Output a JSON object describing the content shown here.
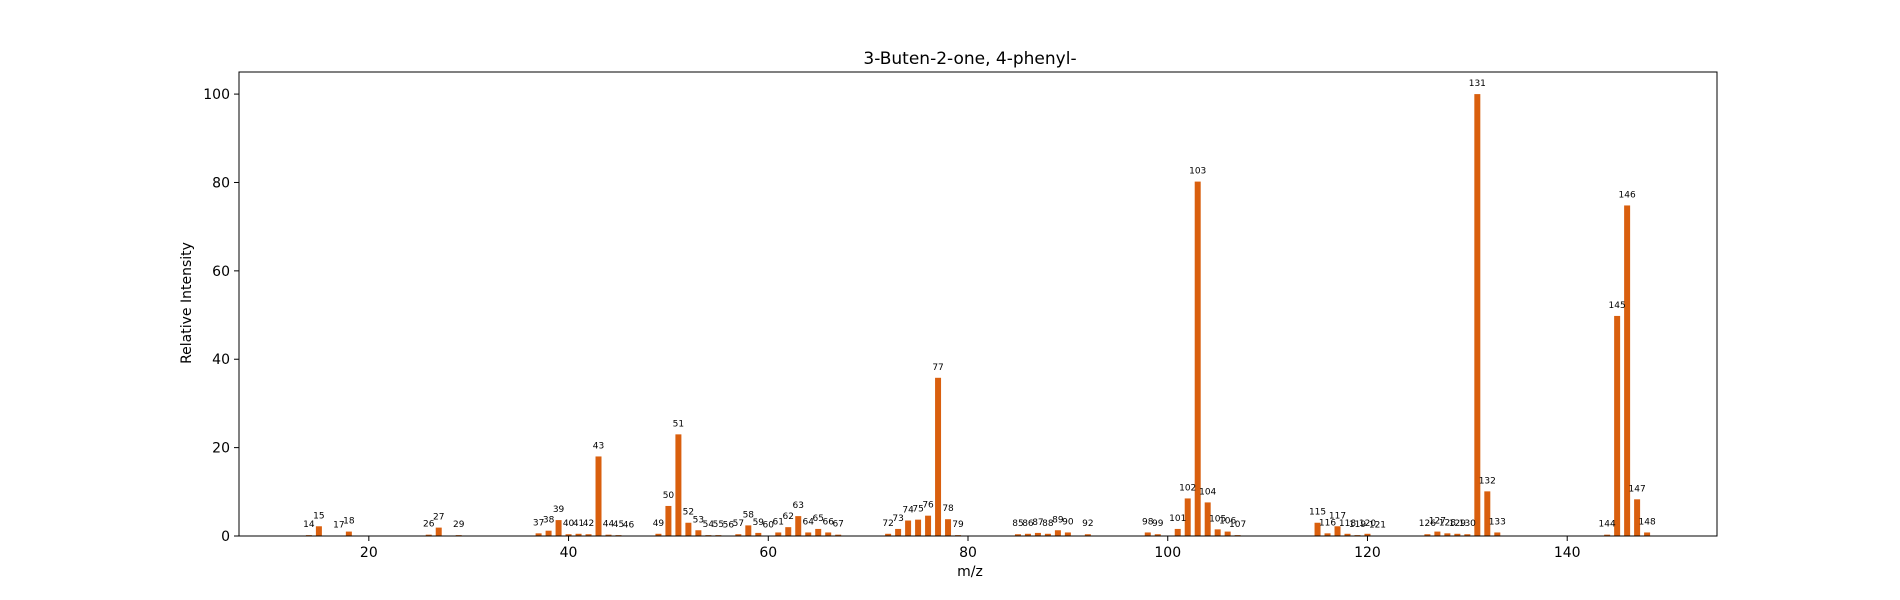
{
  "chart_data": {
    "type": "bar",
    "title": "3-Buten-2-one, 4-phenyl-",
    "xlabel": "m/z",
    "ylabel": "Relative Intensity",
    "xlim": [
      7,
      155
    ],
    "ylim": [
      0,
      105
    ],
    "xticks": [
      20,
      40,
      60,
      80,
      100,
      120,
      140
    ],
    "yticks": [
      0,
      20,
      40,
      60,
      80,
      100
    ],
    "grid": false,
    "bar_color": "#d95f0e",
    "x": [
      14,
      15,
      17,
      18,
      26,
      27,
      29,
      37,
      38,
      39,
      40,
      41,
      42,
      43,
      44,
      45,
      46,
      49,
      50,
      51,
      52,
      53,
      54,
      55,
      56,
      57,
      58,
      59,
      60,
      61,
      62,
      63,
      64,
      65,
      66,
      67,
      72,
      73,
      74,
      75,
      76,
      77,
      78,
      79,
      85,
      86,
      87,
      88,
      89,
      90,
      92,
      98,
      99,
      101,
      102,
      103,
      104,
      105,
      106,
      107,
      115,
      116,
      117,
      118,
      119,
      120,
      121,
      126,
      127,
      128,
      129,
      130,
      131,
      132,
      133,
      144,
      145,
      146,
      147,
      148
    ],
    "values": [
      0.2,
      2.2,
      0.1,
      1.0,
      0.3,
      1.9,
      0.2,
      0.6,
      1.2,
      3.6,
      0.4,
      0.5,
      0.4,
      18.0,
      0.3,
      0.2,
      0.1,
      0.5,
      6.8,
      23.0,
      3.0,
      1.3,
      0.2,
      0.2,
      0.1,
      0.4,
      2.4,
      0.7,
      0.1,
      0.8,
      2.0,
      4.5,
      0.8,
      1.6,
      0.8,
      0.3,
      0.5,
      1.6,
      3.5,
      3.7,
      4.6,
      35.8,
      3.8,
      0.2,
      0.4,
      0.5,
      0.7,
      0.5,
      1.3,
      0.8,
      0.4,
      0.8,
      0.4,
      1.6,
      8.5,
      80.2,
      7.6,
      1.5,
      1.0,
      0.2,
      3.0,
      0.6,
      2.2,
      0.5,
      0.2,
      0.5,
      0.1,
      0.4,
      1.0,
      0.6,
      0.5,
      0.4,
      100.0,
      10.1,
      0.8,
      0.3,
      49.8,
      74.8,
      8.3,
      0.8
    ],
    "labels": [
      "14",
      "15",
      "17",
      "18",
      "26",
      "27",
      "29",
      "37",
      "38",
      "39",
      "40",
      "41",
      "42",
      "43",
      "44",
      "45",
      "46",
      "49",
      "50",
      "51",
      "52",
      "53",
      "54",
      "55",
      "56",
      "57",
      "58",
      "59",
      "60",
      "61",
      "62",
      "63",
      "64",
      "65",
      "66",
      "67",
      "72",
      "73",
      "74",
      "75",
      "76",
      "77",
      "78",
      "79",
      "85",
      "86",
      "87",
      "88",
      "89",
      "90",
      "92",
      "98",
      "99",
      "101",
      "102",
      "103",
      "104",
      "105",
      "106",
      "107",
      "115",
      "116",
      "117",
      "118",
      "119",
      "120",
      "121",
      "126",
      "127",
      "128",
      "129",
      "130",
      "131",
      "132",
      "133",
      "144",
      "145",
      "146",
      "147",
      "148"
    ]
  }
}
